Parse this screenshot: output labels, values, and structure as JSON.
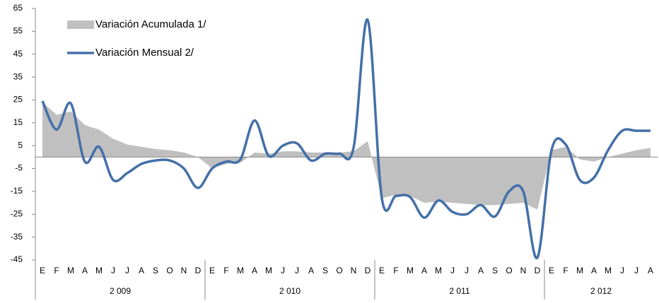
{
  "chart_data": {
    "type": "area-line",
    "categories": [
      "E",
      "F",
      "M",
      "A",
      "M",
      "J",
      "J",
      "A",
      "S",
      "O",
      "N",
      "D",
      "E",
      "F",
      "M",
      "A",
      "M",
      "J",
      "J",
      "A",
      "S",
      "O",
      "N",
      "D",
      "E",
      "F",
      "M",
      "A",
      "M",
      "J",
      "J",
      "A",
      "S",
      "O",
      "N",
      "D",
      "E",
      "F",
      "M",
      "A",
      "M",
      "J",
      "J",
      "A"
    ],
    "groups": [
      "2 009",
      "2 010",
      "2 011",
      "2 012"
    ],
    "series": [
      {
        "name": "Variación Acumulada 1/",
        "kind": "area",
        "color": "#c0c0c0",
        "values": [
          24,
          18.5,
          20,
          14,
          12,
          8,
          5.5,
          4.5,
          3.5,
          3,
          2,
          0,
          -5,
          -3,
          -2.5,
          2,
          1.5,
          2.5,
          2.5,
          2,
          2,
          2,
          2.5,
          7,
          -18,
          -16.5,
          -17,
          -20,
          -19.5,
          -20,
          -20.5,
          -21,
          -21,
          -20.5,
          -20,
          -23,
          3,
          4.5,
          -1,
          -2,
          0,
          1.5,
          3,
          4
        ]
      },
      {
        "name": "Variación Mensual 2/",
        "kind": "line",
        "color": "#4470a8",
        "values": [
          24.5,
          12,
          23.5,
          -2,
          4.5,
          -10,
          -7,
          -3,
          -1.5,
          -1.5,
          -5,
          -13.5,
          -5,
          -2,
          -1,
          16,
          0.5,
          5,
          6,
          -1.5,
          1.5,
          1.5,
          4,
          60,
          -18,
          -17,
          -17.5,
          -26.5,
          -19,
          -24,
          -25,
          -21,
          -26,
          -15,
          -15,
          -44,
          3,
          5.5,
          -10,
          -9,
          3,
          11.5,
          11.5,
          11.5
        ]
      }
    ],
    "ylim": [
      -45,
      65
    ],
    "yticks": [
      65,
      55,
      45,
      35,
      25,
      15,
      5,
      -5,
      -15,
      -25,
      -35,
      -45
    ],
    "legend": "upper-left"
  }
}
